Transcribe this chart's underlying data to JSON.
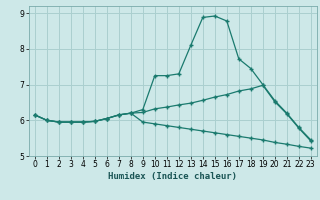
{
  "xlabel": "Humidex (Indice chaleur)",
  "xlim": [
    -0.5,
    23.5
  ],
  "ylim": [
    5,
    9.2
  ],
  "xticks": [
    0,
    1,
    2,
    3,
    4,
    5,
    6,
    7,
    8,
    9,
    10,
    11,
    12,
    13,
    14,
    15,
    16,
    17,
    18,
    19,
    20,
    21,
    22,
    23
  ],
  "yticks": [
    5,
    6,
    7,
    8,
    9
  ],
  "bg_color": "#cde8e8",
  "grid_color": "#aacfcf",
  "line_color": "#1a7a6e",
  "line1_y": [
    6.15,
    6.0,
    5.95,
    5.95,
    5.95,
    5.97,
    6.05,
    6.15,
    6.2,
    6.3,
    7.25,
    7.25,
    7.3,
    8.1,
    8.88,
    8.92,
    8.78,
    7.72,
    7.45,
    7.0,
    6.55,
    6.2,
    5.8,
    5.45
  ],
  "line2_y": [
    6.15,
    6.0,
    5.95,
    5.95,
    5.95,
    5.97,
    6.05,
    6.15,
    6.2,
    6.22,
    6.32,
    6.37,
    6.43,
    6.48,
    6.56,
    6.65,
    6.72,
    6.82,
    6.88,
    6.98,
    6.52,
    6.18,
    5.78,
    5.42
  ],
  "line3_y": [
    6.15,
    6.0,
    5.95,
    5.95,
    5.95,
    5.97,
    6.05,
    6.15,
    6.2,
    5.95,
    5.9,
    5.85,
    5.8,
    5.75,
    5.7,
    5.65,
    5.6,
    5.55,
    5.5,
    5.45,
    5.38,
    5.33,
    5.27,
    5.22
  ]
}
